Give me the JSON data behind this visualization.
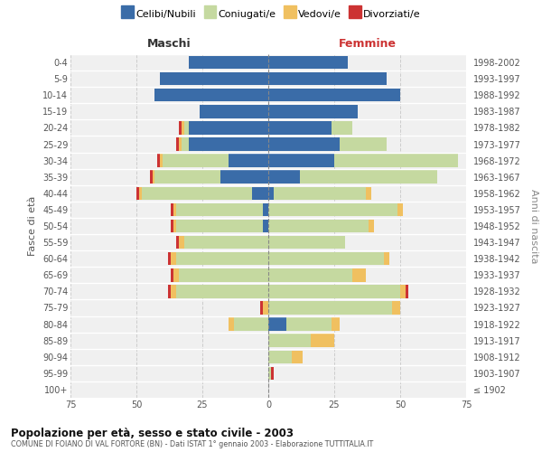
{
  "age_groups": [
    "100+",
    "95-99",
    "90-94",
    "85-89",
    "80-84",
    "75-79",
    "70-74",
    "65-69",
    "60-64",
    "55-59",
    "50-54",
    "45-49",
    "40-44",
    "35-39",
    "30-34",
    "25-29",
    "20-24",
    "15-19",
    "10-14",
    "5-9",
    "0-4"
  ],
  "birth_years": [
    "≤ 1902",
    "1903-1907",
    "1908-1912",
    "1913-1917",
    "1918-1922",
    "1923-1927",
    "1928-1932",
    "1933-1937",
    "1938-1942",
    "1943-1947",
    "1948-1952",
    "1953-1957",
    "1958-1962",
    "1963-1967",
    "1968-1972",
    "1973-1977",
    "1978-1982",
    "1983-1987",
    "1988-1992",
    "1993-1997",
    "1998-2002"
  ],
  "maschi": {
    "celibi": [
      0,
      0,
      0,
      0,
      0,
      0,
      0,
      0,
      0,
      0,
      2,
      2,
      6,
      18,
      15,
      30,
      30,
      26,
      43,
      41,
      30
    ],
    "coniugati": [
      0,
      0,
      0,
      0,
      13,
      0,
      35,
      34,
      35,
      32,
      33,
      33,
      42,
      25,
      25,
      3,
      2,
      0,
      0,
      0,
      0
    ],
    "vedovi": [
      0,
      0,
      0,
      0,
      2,
      2,
      2,
      2,
      2,
      2,
      1,
      1,
      1,
      1,
      1,
      1,
      1,
      0,
      0,
      0,
      0
    ],
    "divorziati": [
      0,
      0,
      0,
      0,
      0,
      1,
      1,
      1,
      1,
      1,
      1,
      1,
      1,
      1,
      1,
      1,
      1,
      0,
      0,
      0,
      0
    ]
  },
  "femmine": {
    "celibi": [
      0,
      0,
      0,
      0,
      7,
      0,
      0,
      0,
      0,
      0,
      0,
      0,
      2,
      12,
      25,
      27,
      24,
      34,
      50,
      45,
      30
    ],
    "coniugati": [
      0,
      1,
      9,
      16,
      17,
      47,
      50,
      32,
      44,
      29,
      38,
      49,
      35,
      52,
      47,
      18,
      8,
      0,
      0,
      0,
      0
    ],
    "vedovi": [
      0,
      0,
      4,
      9,
      3,
      3,
      2,
      5,
      2,
      0,
      2,
      2,
      2,
      0,
      0,
      0,
      0,
      0,
      0,
      0,
      0
    ],
    "divorziati": [
      0,
      1,
      0,
      0,
      0,
      0,
      1,
      0,
      0,
      0,
      0,
      0,
      0,
      0,
      0,
      0,
      0,
      0,
      0,
      0,
      0
    ]
  },
  "colors": {
    "celibi": "#3a6ca8",
    "coniugati": "#c5d9a0",
    "vedovi": "#f0c060",
    "divorziati": "#cc3333"
  },
  "legend_labels": [
    "Celibi/Nubili",
    "Coniugati/e",
    "Vedovi/e",
    "Divorziati/e"
  ],
  "xlim": 75,
  "title": "Popolazione per età, sesso e stato civile - 2003",
  "subtitle": "COMUNE DI FOIANO DI VAL FORTORE (BN) - Dati ISTAT 1° gennaio 2003 - Elaborazione TUTTITALIA.IT",
  "xlabel_left": "Maschi",
  "xlabel_right": "Femmine",
  "ylabel_left": "Fasce di età",
  "ylabel_right": "Anni di nascita",
  "bg_color": "#ffffff",
  "plot_bg_color": "#f0f0f0",
  "grid_color": "#cccccc"
}
